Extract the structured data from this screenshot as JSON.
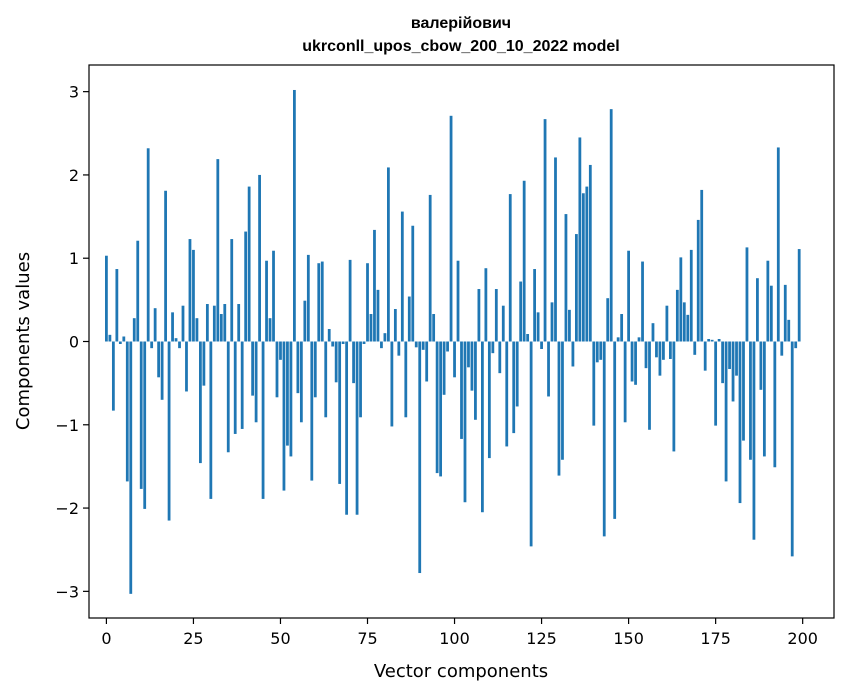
{
  "chart_data": {
    "type": "bar",
    "title": "валерійович",
    "subtitle": "ukrconll_upos_cbow_200_10_2022 model",
    "xlabel": "Vector components",
    "ylabel": "Components values",
    "xlim": [
      -5,
      209
    ],
    "ylim": [
      -3.32,
      3.32
    ],
    "x_ticks": [
      0,
      25,
      50,
      75,
      100,
      125,
      150,
      175,
      200
    ],
    "y_ticks": [
      -3,
      -2,
      -1,
      0,
      1,
      2,
      3
    ],
    "x_tick_labels": [
      "0",
      "25",
      "50",
      "75",
      "100",
      "125",
      "150",
      "175",
      "200"
    ],
    "y_tick_labels": [
      "−3",
      "−2",
      "−1",
      "0",
      "1",
      "2",
      "3"
    ],
    "grid": false,
    "bar_color": "#1f77b4",
    "values": [
      1.03,
      0.08,
      -0.83,
      0.87,
      -0.03,
      0.06,
      -1.68,
      -3.03,
      0.28,
      1.21,
      -1.77,
      -2.01,
      2.32,
      -0.08,
      0.4,
      -0.43,
      -0.7,
      1.81,
      -2.15,
      0.35,
      0.04,
      -0.08,
      0.43,
      -0.6,
      1.23,
      1.1,
      0.28,
      -1.46,
      -0.53,
      0.45,
      -1.89,
      0.43,
      2.19,
      0.33,
      0.45,
      -1.33,
      1.23,
      -1.11,
      0.45,
      -1.05,
      1.32,
      1.86,
      -0.65,
      -0.97,
      2.0,
      -1.89,
      0.97,
      0.28,
      1.09,
      -0.67,
      -0.22,
      -1.79,
      -1.25,
      -1.38,
      3.02,
      -0.62,
      -0.97,
      0.49,
      1.04,
      -1.67,
      -0.67,
      0.94,
      0.96,
      -0.91,
      0.15,
      -0.06,
      -0.49,
      -1.71,
      -0.03,
      -2.08,
      0.98,
      -0.5,
      -2.08,
      -0.91,
      -0.03,
      0.94,
      0.33,
      1.34,
      0.62,
      -0.08,
      0.1,
      2.09,
      -1.02,
      0.39,
      -0.17,
      1.56,
      -0.91,
      0.54,
      1.39,
      -0.07,
      -2.78,
      -0.1,
      -0.48,
      1.76,
      0.33,
      -1.58,
      -1.62,
      -0.64,
      -0.12,
      2.71,
      -0.43,
      0.97,
      -1.17,
      -1.93,
      -0.31,
      -0.59,
      -0.94,
      0.63,
      -2.05,
      0.88,
      -1.4,
      -0.14,
      0.63,
      -0.38,
      0.43,
      -1.26,
      1.77,
      -1.1,
      -0.78,
      0.72,
      1.93,
      0.09,
      -2.46,
      0.87,
      0.35,
      -0.09,
      2.67,
      -0.66,
      0.47,
      2.21,
      -1.61,
      -1.42,
      1.53,
      0.38,
      -0.3,
      1.29,
      2.45,
      1.78,
      1.86,
      2.12,
      -1.01,
      -0.25,
      -0.22,
      -2.34,
      0.52,
      2.79,
      -2.13,
      0.05,
      0.33,
      -0.97,
      1.09,
      -0.48,
      -0.52,
      0.05,
      0.96,
      -0.32,
      -1.06,
      0.22,
      -0.19,
      -0.41,
      -0.22,
      0.43,
      -0.21,
      -1.32,
      0.62,
      1.01,
      0.47,
      0.32,
      1.1,
      -0.16,
      1.46,
      1.82,
      -0.35,
      0.03,
      0.02,
      -1.01,
      0.03,
      -0.5,
      -1.68,
      -0.33,
      -0.72,
      -0.41,
      -1.94,
      -1.19,
      1.13,
      -1.42,
      -2.38,
      0.76,
      -0.58,
      -1.38,
      0.97,
      0.67,
      -1.51,
      2.33,
      -0.17,
      0.68,
      0.26,
      -2.58,
      -0.08,
      1.11
    ]
  }
}
